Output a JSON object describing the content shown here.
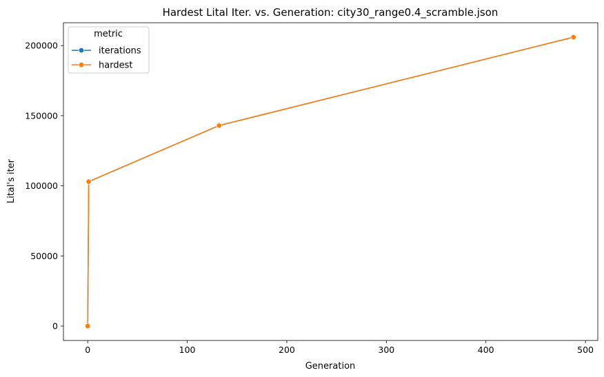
{
  "chart_data": {
    "type": "line",
    "title": "Hardest Lital Iter. vs. Generation: city30_range0.4_scramble.json",
    "xlabel": "Generation",
    "ylabel": "Lital's iter",
    "xlim": [
      -24.4,
      512.4
    ],
    "ylim": [
      -10300,
      216300
    ],
    "x_ticks": [
      0,
      100,
      200,
      300,
      400,
      500
    ],
    "y_ticks": [
      0,
      50000,
      100000,
      150000,
      200000
    ],
    "x_tick_labels": [
      "0",
      "100",
      "200",
      "300",
      "400",
      "500"
    ],
    "y_tick_labels": [
      "0",
      "50000",
      "100000",
      "150000",
      "200000"
    ],
    "grid": false,
    "legend": {
      "title": "metric",
      "placement": "top-left",
      "entries": [
        "iterations",
        "hardest"
      ]
    },
    "series": [
      {
        "name": "iterations",
        "color": "#1f77b4",
        "x": [
          0,
          1,
          132,
          488
        ],
        "y": [
          0,
          103000,
          143000,
          206000
        ]
      },
      {
        "name": "hardest",
        "color": "#ff7f0e",
        "x": [
          0,
          1,
          132,
          488
        ],
        "y": [
          0,
          103000,
          143000,
          206000
        ]
      }
    ]
  }
}
